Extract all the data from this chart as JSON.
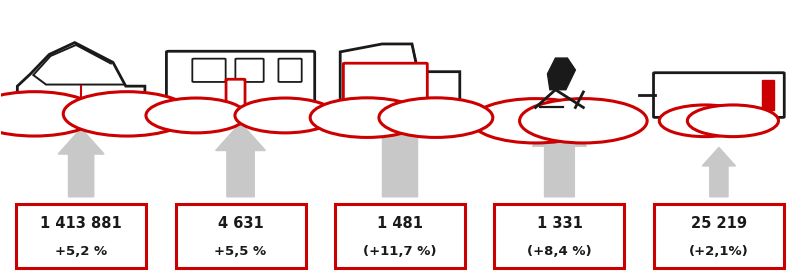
{
  "items": [
    {
      "value": "1 413 881",
      "change": "+5,2 %",
      "arrow_scale": 0.72
    },
    {
      "value": "4 631",
      "change": "+5,5 %",
      "arrow_scale": 0.78
    },
    {
      "value": "1 481",
      "change": "(+11,7 %)",
      "arrow_scale": 1.0
    },
    {
      "value": "1 331",
      "change": "(+8,4 %)",
      "arrow_scale": 0.85
    },
    {
      "value": "25 219",
      "change": "(+2,1%)",
      "arrow_scale": 0.52
    }
  ],
  "box_color": "#cc0000",
  "arrow_color": "#c8c8c8",
  "background": "#ffffff",
  "text_color": "#1a1a1a",
  "value_fontsize": 10.5,
  "change_fontsize": 9.5,
  "positions": [
    0.1,
    0.3,
    0.5,
    0.7,
    0.9
  ],
  "fig_w": 8.0,
  "fig_h": 2.8
}
